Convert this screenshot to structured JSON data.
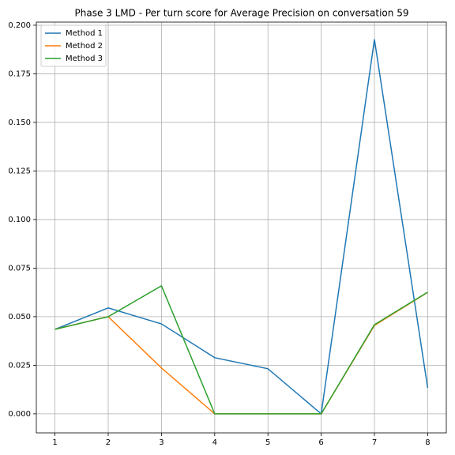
{
  "chart_data": {
    "type": "line",
    "title": "Phase 3 LMD - Per turn score for Average Precision on conversation 59",
    "x": [
      1,
      2,
      3,
      4,
      5,
      6,
      7,
      8
    ],
    "series": [
      {
        "name": "Method 1",
        "color": "#1f77b4",
        "values": [
          0.0435,
          0.0545,
          0.0463,
          0.0289,
          0.0232,
          0.0,
          0.1927,
          0.0134
        ]
      },
      {
        "name": "Method 2",
        "color": "#ff7f0e",
        "values": [
          0.0435,
          0.05,
          0.0236,
          0.0,
          0.0,
          0.0,
          0.0455,
          0.0625
        ]
      },
      {
        "name": "Method 3",
        "color": "#2ca02c",
        "values": [
          0.0435,
          0.05,
          0.0659,
          0.0,
          0.0,
          0.0,
          0.0459,
          0.0626
        ]
      }
    ],
    "xlim": [
      0.65,
      8.35
    ],
    "xticks": [
      1,
      2,
      3,
      4,
      5,
      6,
      7,
      8
    ],
    "ylim": [
      -0.0098,
      0.2016
    ],
    "yticks": [
      {
        "value": 0,
        "label": "0.000"
      },
      {
        "value": 0.025,
        "label": "0.025"
      },
      {
        "value": 0.05,
        "label": "0.050"
      },
      {
        "value": 0.075,
        "label": "0.075"
      },
      {
        "value": 0.1,
        "label": "0.100"
      },
      {
        "value": 0.125,
        "label": "0.125"
      },
      {
        "value": 0.15,
        "label": "0.150"
      },
      {
        "value": 0.175,
        "label": "0.175"
      },
      {
        "value": 0.2,
        "label": "0.200"
      }
    ],
    "grid": true,
    "legend": "upper left"
  }
}
